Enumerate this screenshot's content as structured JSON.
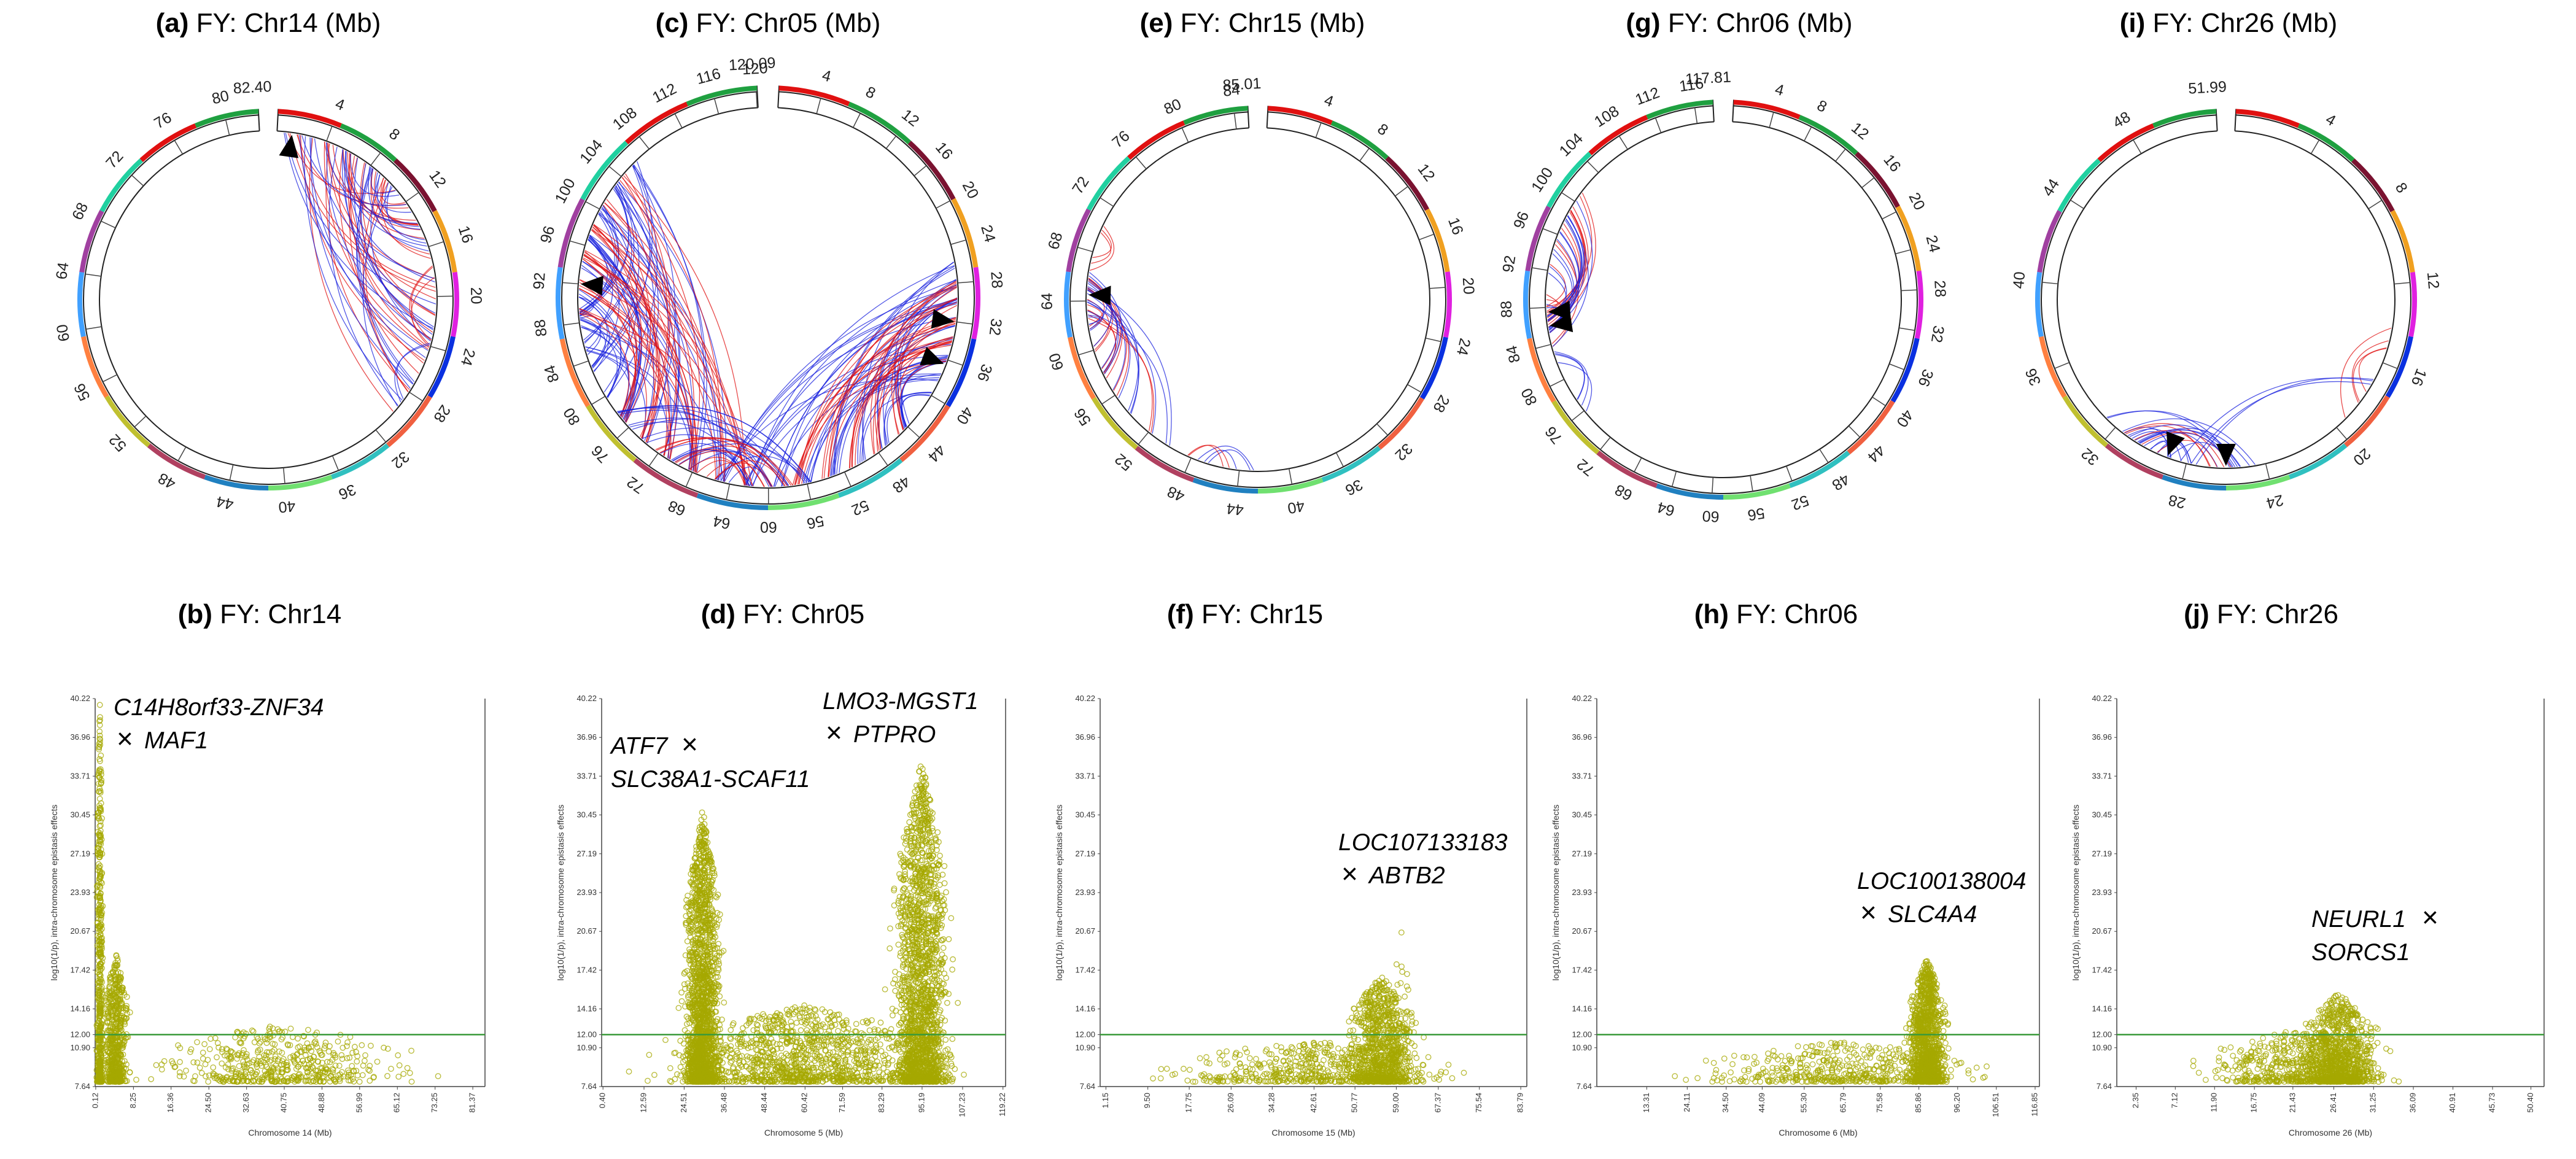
{
  "figure": {
    "colors": {
      "point": "#a6a800",
      "threshold": "#3a9a3a",
      "threshold_label": "#2e9e2e",
      "link_red": "#e01010",
      "link_blue": "#1a22dd",
      "marker": "#000000",
      "segments": [
        "#e01010",
        "#1fa040",
        "#7a1230",
        "#f0a020",
        "#e020e0",
        "#0a30e0",
        "#f06040",
        "#30c0c0",
        "#70e070",
        "#2080c0",
        "#b04060",
        "#c0c030",
        "#ff8040",
        "#40a0ff",
        "#a040a0",
        "#20d0a0"
      ]
    }
  },
  "chart_data": [
    {
      "type": "circos",
      "panel": "(a)",
      "title": "FY: Chr14 (Mb)",
      "length_mb": 82.4,
      "end_label": "82.40",
      "ticks": [
        4,
        8,
        12,
        16,
        20,
        24,
        28,
        32,
        36,
        40,
        44,
        48,
        52,
        56,
        60,
        64,
        68,
        72,
        76,
        80
      ],
      "links": [
        {
          "from": [
            11,
            12,
            13,
            14,
            15,
            16,
            17,
            18,
            19,
            20,
            21,
            22,
            23,
            24,
            25,
            26,
            27,
            28,
            29,
            30
          ],
          "to": [
            1,
            2,
            3,
            4,
            5,
            6,
            7,
            8,
            9,
            10
          ],
          "color": "red",
          "count": 30
        },
        {
          "from": [
            11,
            12,
            13,
            14,
            15,
            16,
            17,
            18,
            19,
            20,
            21,
            22,
            23,
            24,
            25,
            26,
            27,
            28,
            29,
            30
          ],
          "to": [
            1,
            2,
            3,
            4,
            5,
            6,
            7,
            8,
            9,
            10
          ],
          "color": "blue",
          "count": 30
        },
        {
          "from": [
            18
          ],
          "to": [
            24
          ],
          "color": "red",
          "count": 3
        },
        {
          "from": [
            24
          ],
          "to": [
            29
          ],
          "color": "blue",
          "count": 2
        }
      ],
      "markers_mb": [
        1.2
      ]
    },
    {
      "type": "circos",
      "panel": "(c)",
      "title": "FY: Chr05 (Mb)",
      "length_mb": 120.09,
      "end_label": "120.09",
      "ticks": [
        4,
        8,
        12,
        16,
        20,
        24,
        28,
        32,
        36,
        40,
        44,
        48,
        52,
        56,
        60,
        64,
        68,
        72,
        76,
        80,
        84,
        88,
        92,
        96,
        100,
        104,
        108,
        112,
        116,
        120
      ],
      "links": [
        {
          "from": [
            85,
            88,
            91,
            94,
            97,
            100,
            103,
            106
          ],
          "to": [
            65,
            68,
            71,
            74,
            77,
            80,
            83,
            86,
            89
          ],
          "color": "blue",
          "count": 60
        },
        {
          "from": [
            89,
            92,
            95,
            98,
            101,
            104
          ],
          "to": [
            62,
            65,
            68,
            71,
            74,
            77
          ],
          "color": "red",
          "count": 40
        },
        {
          "from": [
            26,
            28,
            30,
            32,
            34,
            36,
            38,
            40
          ],
          "to": [
            44,
            47,
            50,
            53,
            56,
            59,
            62,
            65
          ],
          "color": "blue",
          "count": 50
        },
        {
          "from": [
            28,
            30,
            32,
            34,
            36
          ],
          "to": [
            45,
            48,
            51,
            54,
            57
          ],
          "color": "red",
          "count": 30
        },
        {
          "from": [
            64,
            66,
            68,
            70,
            72,
            74,
            76,
            78
          ],
          "to": [
            56,
            58,
            60,
            62
          ],
          "color": "blue",
          "count": 20
        },
        {
          "from": [
            66,
            68,
            70,
            72
          ],
          "to": [
            58,
            60,
            62
          ],
          "color": "red",
          "count": 12
        }
      ],
      "markers_mb": [
        92.0,
        32.0,
        36.5
      ]
    },
    {
      "type": "circos",
      "panel": "(e)",
      "title": "FY: Chr15 (Mb)",
      "length_mb": 85.01,
      "end_label": "85.01",
      "ticks": [
        4,
        8,
        12,
        16,
        20,
        24,
        28,
        32,
        36,
        40,
        44,
        48,
        52,
        56,
        60,
        64,
        68,
        72,
        76,
        80,
        84
      ],
      "links": [
        {
          "from": [
            63,
            64,
            65,
            66
          ],
          "to": [
            52,
            54,
            56,
            58,
            60,
            62
          ],
          "color": "red",
          "count": 14
        },
        {
          "from": [
            63,
            64,
            65,
            66
          ],
          "to": [
            50,
            52,
            54,
            56,
            58,
            60,
            62
          ],
          "color": "blue",
          "count": 16
        },
        {
          "from": [
            66,
            67,
            68
          ],
          "to": [
            69,
            70
          ],
          "color": "red",
          "count": 3
        },
        {
          "from": [
            46,
            47
          ],
          "to": [
            43,
            44
          ],
          "color": "blue",
          "count": 3
        },
        {
          "from": [
            48
          ],
          "to": [
            45
          ],
          "color": "red",
          "count": 2
        }
      ],
      "markers_mb": [
        64.5
      ]
    },
    {
      "type": "circos",
      "panel": "(g)",
      "title": "FY: Chr06 (Mb)",
      "length_mb": 117.81,
      "end_label": "117.81",
      "ticks": [
        4,
        8,
        12,
        16,
        20,
        24,
        28,
        32,
        36,
        40,
        44,
        48,
        52,
        56,
        60,
        64,
        68,
        72,
        76,
        80,
        84,
        88,
        92,
        96,
        100,
        104,
        108,
        112,
        116
      ],
      "links": [
        {
          "from": [
            84,
            85,
            86,
            87,
            88
          ],
          "to": [
            89,
            91,
            93,
            95,
            97,
            99,
            101
          ],
          "color": "red",
          "count": 14
        },
        {
          "from": [
            84,
            85,
            86,
            87,
            88
          ],
          "to": [
            88,
            90,
            92,
            94,
            96,
            98,
            100
          ],
          "color": "blue",
          "count": 16
        },
        {
          "from": [
            76,
            77
          ],
          "to": [
            82,
            83
          ],
          "color": "blue",
          "count": 4
        }
      ],
      "markers_mb": [
        87.5,
        86.0
      ]
    },
    {
      "type": "circos",
      "panel": "(i)",
      "title": "FY: Chr26 (Mb)",
      "length_mb": 51.99,
      "end_label": "51.99",
      "ticks": [
        4,
        8,
        12,
        16,
        20,
        24,
        28,
        32,
        36,
        40,
        44,
        48
      ],
      "links": [
        {
          "from": [
            30,
            31
          ],
          "to": [
            26,
            27,
            28,
            29
          ],
          "color": "blue",
          "count": 10
        },
        {
          "from": [
            30,
            31
          ],
          "to": [
            26,
            27,
            28,
            29
          ],
          "color": "red",
          "count": 5
        },
        {
          "from": [
            25,
            26
          ],
          "to": [
            29,
            30,
            31,
            32,
            33
          ],
          "color": "blue",
          "count": 8
        },
        {
          "from": [
            14,
            15
          ],
          "to": [
            18,
            19
          ],
          "color": "red",
          "count": 4
        },
        {
          "from": [
            17,
            18
          ],
          "to": [
            27,
            28
          ],
          "color": "blue",
          "count": 3
        }
      ],
      "markers_mb": [
        29.0,
        26.0
      ]
    },
    {
      "type": "scatter",
      "panel": "(b)",
      "title": "FY: Chr14",
      "xlabel": "Chromosome 14 (Mb)",
      "ylabel": "log10(1/p), intra-chromosome epistasis effects",
      "xlim": [
        0,
        84
      ],
      "ylim": [
        7.64,
        40.22
      ],
      "yticks": [
        "40.22",
        "36.96",
        "33.71",
        "30.45",
        "27.19",
        "23.93",
        "20.67",
        "17.42",
        "14.16",
        "12.00",
        "10.90",
        "7.64"
      ],
      "xticks": [
        "0.12",
        "8.25",
        "16.36",
        "24.50",
        "32.63",
        "40.75",
        "48.88",
        "56.99",
        "65.12",
        "73.25",
        "81.37"
      ],
      "threshold": 12.0,
      "threshold_label": "12.00",
      "clusters": [
        {
          "center": 1.0,
          "spread": 0.9,
          "ymax": 40.22,
          "n": 500
        },
        {
          "center": 4.5,
          "spread": 4.0,
          "ymax": 19.0,
          "n": 600
        },
        {
          "center": 40.0,
          "spread": 38.0,
          "ymax": 13.0,
          "n": 500
        }
      ],
      "annotations": [
        {
          "gene1": "C14H8orf33-ZNF34",
          "gene2": "MAF1"
        }
      ]
    },
    {
      "type": "scatter",
      "panel": "(d)",
      "title": "FY: Chr05",
      "xlabel": "Chromosome 5 (Mb)",
      "ylabel": "log10(1/p), intra-chromosome epistasis effects",
      "xlim": [
        0,
        120
      ],
      "ylim": [
        7.64,
        40.22
      ],
      "yticks": [
        "40.22",
        "36.96",
        "33.71",
        "30.45",
        "27.19",
        "23.93",
        "20.67",
        "17.42",
        "14.16",
        "12.00",
        "10.90",
        "7.64"
      ],
      "xticks": [
        "0.40",
        "12.59",
        "24.51",
        "36.48",
        "48.44",
        "60.42",
        "71.59",
        "83.29",
        "95.19",
        "107.23",
        "119.22"
      ],
      "threshold": 12.0,
      "threshold_label": "12.00",
      "clusters": [
        {
          "center": 30.0,
          "spread": 8.0,
          "ymax": 31.0,
          "n": 1800
        },
        {
          "center": 95.0,
          "spread": 12.0,
          "ymax": 35.0,
          "n": 1900
        },
        {
          "center": 60.0,
          "spread": 58.0,
          "ymax": 14.5,
          "n": 1100
        }
      ],
      "annotations": [
        {
          "gene1": "ATF7",
          "gene2": "SLC38A1-SCAF11"
        },
        {
          "gene1": "LMO3-MGST1",
          "gene2": "PTPRO"
        }
      ]
    },
    {
      "type": "scatter",
      "panel": "(f)",
      "title": "FY: Chr15",
      "xlabel": "Chromosome 15 (Mb)",
      "ylabel": "log10(1/p), intra-chromosome epistasis effects",
      "xlim": [
        0,
        85
      ],
      "ylim": [
        7.64,
        40.22
      ],
      "yticks": [
        "40.22",
        "36.96",
        "33.71",
        "30.45",
        "27.19",
        "23.93",
        "20.67",
        "17.42",
        "14.16",
        "12.00",
        "10.90",
        "7.64"
      ],
      "xticks": [
        "1.15",
        "9.50",
        "17.75",
        "26.09",
        "34.28",
        "42.61",
        "50.77",
        "59.00",
        "67.37",
        "75.54",
        "83.79"
      ],
      "threshold": 12.0,
      "threshold_label": "12.00",
      "clusters": [
        {
          "center": 56.0,
          "spread": 10.0,
          "ymax": 17.0,
          "n": 900
        },
        {
          "center": 60.0,
          "spread": 2.5,
          "ymax": 21.0,
          "n": 40
        },
        {
          "center": 42.0,
          "spread": 40.0,
          "ymax": 11.5,
          "n": 500
        }
      ],
      "annotations": [
        {
          "gene1": "LOC107133183",
          "gene2": "ABTB2"
        }
      ]
    },
    {
      "type": "scatter",
      "panel": "(h)",
      "title": "FY: Chr06",
      "xlabel": "Chromosome 6 (Mb)",
      "ylabel": "log10(1/p), intra-chromosome epistasis effects",
      "xlim": [
        0,
        118
      ],
      "ylim": [
        7.64,
        40.22
      ],
      "yticks": [
        "40.22",
        "36.96",
        "33.71",
        "30.45",
        "27.19",
        "23.93",
        "20.67",
        "17.42",
        "14.16",
        "12.00",
        "10.90",
        "7.64"
      ],
      "xticks": [
        "13.31",
        "24.11",
        "34.50",
        "44.09",
        "55.30",
        "65.79",
        "75.58",
        "85.86",
        "96.20",
        "106.51",
        "116.85"
      ],
      "threshold": 12.0,
      "threshold_label": "12.00",
      "clusters": [
        {
          "center": 88.0,
          "spread": 7.0,
          "ymax": 18.5,
          "n": 1200
        },
        {
          "center": 65.0,
          "spread": 52.0,
          "ymax": 11.5,
          "n": 450
        }
      ],
      "annotations": [
        {
          "gene1": "LOC100138004",
          "gene2": "SLC4A4"
        }
      ]
    },
    {
      "type": "scatter",
      "panel": "(j)",
      "title": "FY: Chr26",
      "xlabel": "Chromosome 26 (Mb)",
      "ylabel": "log10(1/p), intra-chromosome epistasis effects",
      "xlim": [
        0,
        52
      ],
      "ylim": [
        7.64,
        40.22
      ],
      "yticks": [
        "40.22",
        "36.96",
        "33.71",
        "30.45",
        "27.19",
        "23.93",
        "20.67",
        "17.42",
        "14.16",
        "12.00",
        "10.90",
        "7.64"
      ],
      "xticks": [
        "2.35",
        "7.12",
        "11.90",
        "16.75",
        "21.43",
        "26.41",
        "31.25",
        "36.09",
        "40.91",
        "45.73",
        "50.40"
      ],
      "threshold": 12.0,
      "threshold_label": "12.00",
      "clusters": [
        {
          "center": 27.0,
          "spread": 7.0,
          "ymax": 15.5,
          "n": 900
        },
        {
          "center": 22.0,
          "spread": 16.0,
          "ymax": 12.5,
          "n": 500
        }
      ],
      "annotations": [
        {
          "gene1": "NEURL1",
          "gene2": "SORCS1"
        }
      ]
    }
  ]
}
